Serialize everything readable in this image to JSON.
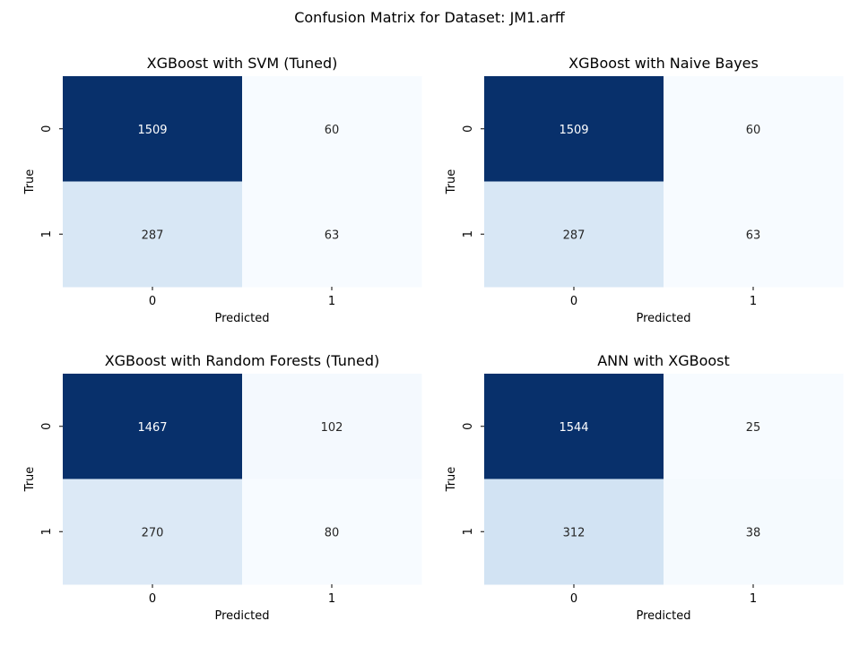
{
  "figure": {
    "suptitle": "Confusion Matrix for Dataset: JM1.arff"
  },
  "chart_data": [
    {
      "type": "heatmap",
      "title": "XGBoost with SVM (Tuned)",
      "xlabel": "Predicted",
      "ylabel": "True",
      "x_ticklabels": [
        "0",
        "1"
      ],
      "y_ticklabels": [
        "0",
        "1"
      ],
      "values": [
        [
          1509,
          60
        ],
        [
          287,
          63
        ]
      ],
      "colormap": "Blues",
      "colorbar": false
    },
    {
      "type": "heatmap",
      "title": "XGBoost with Naive Bayes",
      "xlabel": "Predicted",
      "ylabel": "True",
      "x_ticklabels": [
        "0",
        "1"
      ],
      "y_ticklabels": [
        "0",
        "1"
      ],
      "values": [
        [
          1509,
          60
        ],
        [
          287,
          63
        ]
      ],
      "colormap": "Blues",
      "colorbar": false
    },
    {
      "type": "heatmap",
      "title": "XGBoost with Random Forests (Tuned)",
      "xlabel": "Predicted",
      "ylabel": "True",
      "x_ticklabels": [
        "0",
        "1"
      ],
      "y_ticklabels": [
        "0",
        "1"
      ],
      "values": [
        [
          1467,
          102
        ],
        [
          270,
          80
        ]
      ],
      "colormap": "Blues",
      "colorbar": false
    },
    {
      "type": "heatmap",
      "title": "ANN with XGBoost",
      "xlabel": "Predicted",
      "ylabel": "True",
      "x_ticklabels": [
        "0",
        "1"
      ],
      "y_ticklabels": [
        "0",
        "1"
      ],
      "values": [
        [
          1544,
          25
        ],
        [
          312,
          38
        ]
      ],
      "colormap": "Blues",
      "colorbar": false
    }
  ]
}
